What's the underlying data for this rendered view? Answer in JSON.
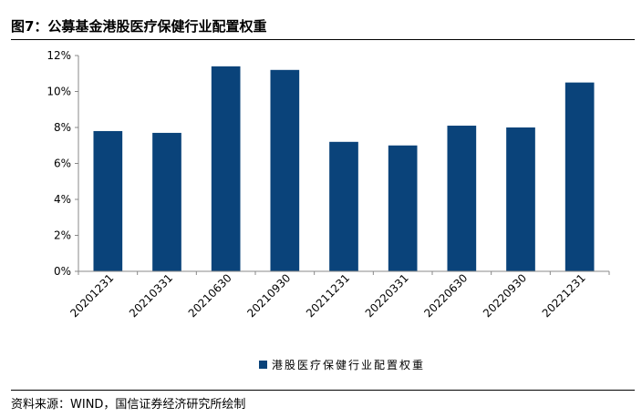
{
  "figure": {
    "title": "图7：公募基金港股医疗保健行业配置权重",
    "source": "资料来源：WIND，国信证券经济研究所绘制"
  },
  "chart_data": {
    "type": "bar",
    "title": "图7：公募基金港股医疗保健行业配置权重",
    "categories": [
      "20201231",
      "20210331",
      "20210630",
      "20210930",
      "20211231",
      "20220331",
      "20220630",
      "20220930",
      "20221231"
    ],
    "series": [
      {
        "name": "港股医疗保健行业配置权重",
        "values": [
          7.8,
          7.7,
          11.4,
          11.2,
          7.2,
          7.0,
          8.1,
          8.0,
          10.5
        ],
        "color": "#0a437a"
      }
    ],
    "yunit": "%",
    "ylim": [
      0,
      12
    ],
    "yticks": [
      0,
      2,
      4,
      6,
      8,
      10,
      12
    ],
    "ytick_labels": [
      "0%",
      "2%",
      "4%",
      "6%",
      "8%",
      "10%",
      "12%"
    ],
    "grid": false,
    "legend_position": "bottom-center",
    "xlabel": "",
    "ylabel": ""
  }
}
